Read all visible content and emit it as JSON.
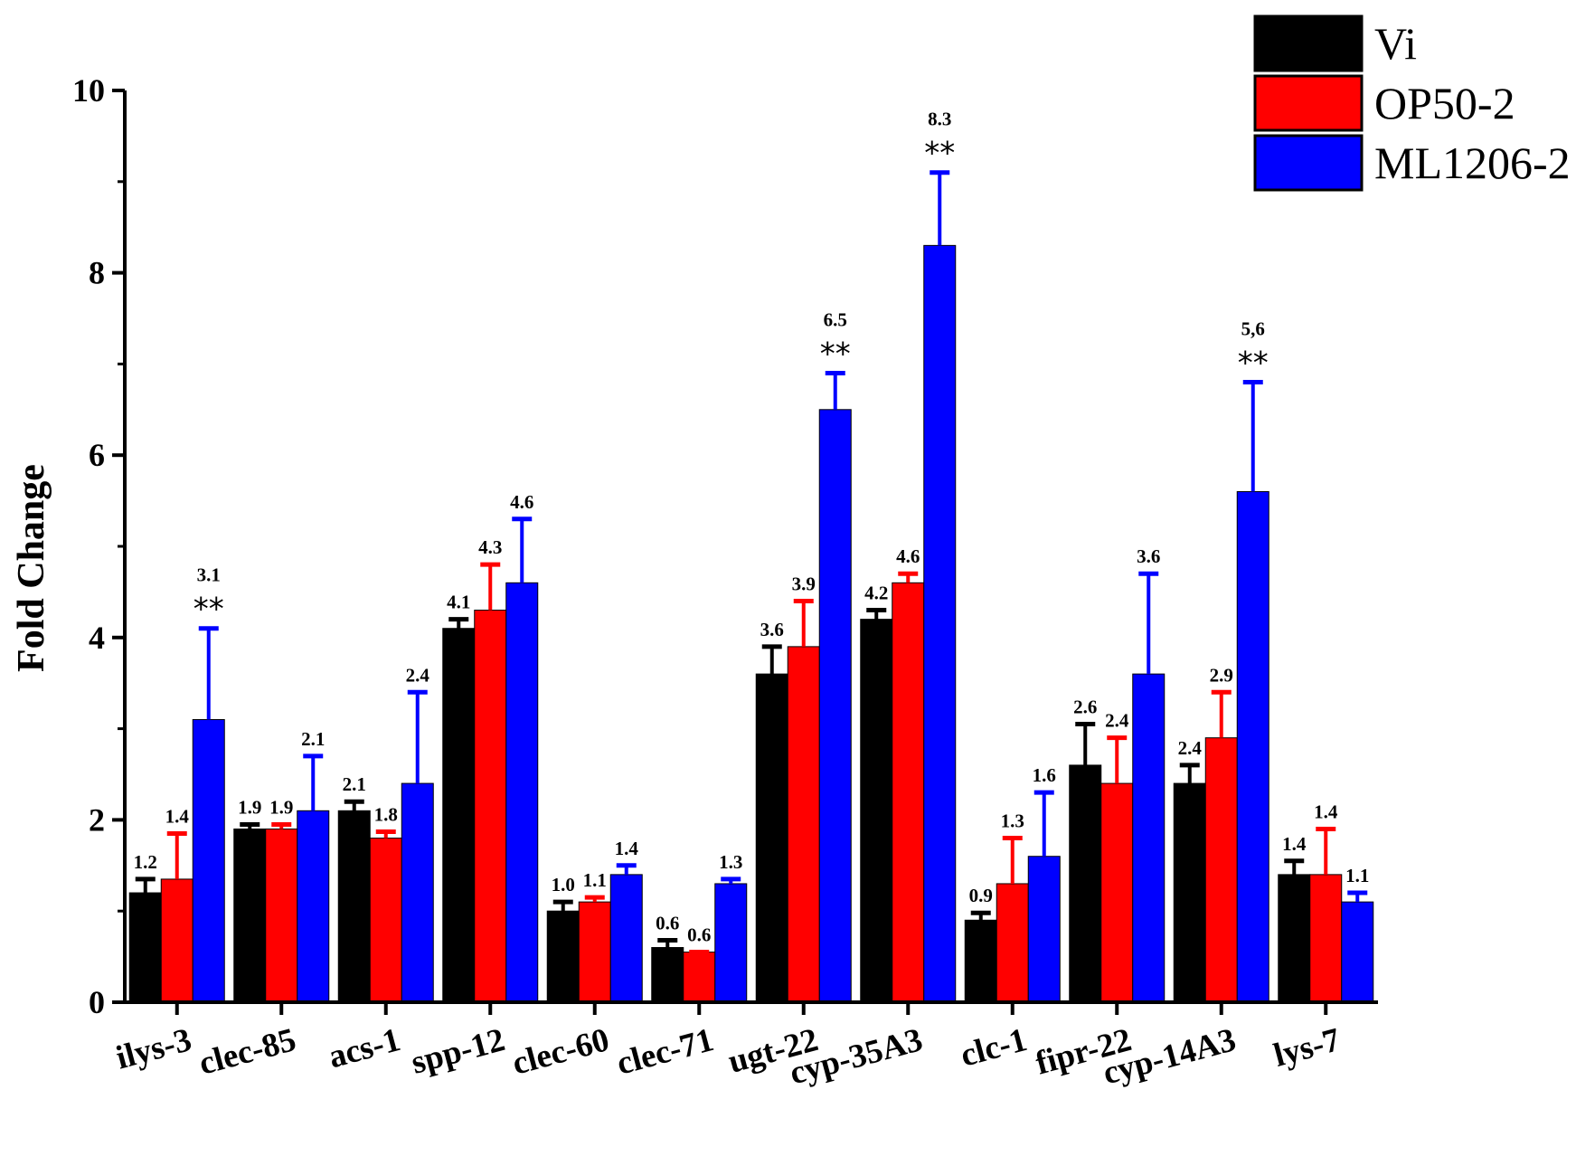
{
  "chart_data": {
    "type": "bar",
    "title": "",
    "xlabel": "",
    "ylabel": "Fold Change",
    "ylim": [
      0,
      10
    ],
    "yticks": [
      "0",
      "2",
      "4",
      "6",
      "8",
      "10"
    ],
    "grid": false,
    "legend_position": "top-right",
    "categories": [
      "ilys-3",
      "clec-85",
      "acs-1",
      "spp-12",
      "clec-60",
      "clec-71",
      "ugt-22",
      "cyp-35A3",
      "clc-1",
      "fipr-22",
      "cyp-14A3",
      "lys-7"
    ],
    "series": [
      {
        "name": "Vi",
        "color": "#000000",
        "values": [
          1.2,
          1.9,
          2.1,
          4.1,
          1.0,
          0.6,
          3.6,
          4.2,
          0.9,
          2.6,
          2.4,
          1.4
        ],
        "errors": [
          0.15,
          0.05,
          0.1,
          0.1,
          0.1,
          0.08,
          0.3,
          0.1,
          0.08,
          0.45,
          0.2,
          0.15
        ],
        "labels": [
          "1.2",
          "1.9",
          "2.1",
          "4.1",
          "1.0",
          "0.6",
          "3.6",
          "4.2",
          "0.9",
          "2.6",
          "2.4",
          "1.4"
        ]
      },
      {
        "name": "OP50-2",
        "color": "#ff0000",
        "values": [
          1.35,
          1.9,
          1.8,
          4.3,
          1.1,
          0.55,
          3.9,
          4.6,
          1.3,
          2.4,
          2.9,
          1.4
        ],
        "errors": [
          0.5,
          0.05,
          0.07,
          0.5,
          0.05,
          0.0,
          0.5,
          0.1,
          0.5,
          0.5,
          0.5,
          0.5
        ],
        "labels": [
          "1.4",
          "1.9",
          "1.8",
          "4.3",
          "1.1",
          "0.6",
          "3.9",
          "4.6",
          "1.3",
          "2.4",
          "2.9",
          "1.4"
        ]
      },
      {
        "name": "ML1206-2",
        "color": "#0000ff",
        "values": [
          3.1,
          2.1,
          2.4,
          4.6,
          1.4,
          1.3,
          6.5,
          8.3,
          1.6,
          3.6,
          5.6,
          1.1
        ],
        "errors": [
          1.0,
          0.6,
          1.0,
          0.7,
          0.1,
          0.05,
          0.4,
          0.8,
          0.7,
          1.1,
          1.2,
          0.1
        ],
        "labels": [
          "3.1",
          "2.1",
          "2.4",
          "4.6",
          "1.4",
          "1.3",
          "6.5",
          "8.3",
          "1.6",
          "3.6",
          "5,6",
          "1.1"
        ],
        "significance": [
          "**",
          "",
          "",
          "",
          "",
          "",
          "**",
          "**",
          "",
          "",
          "**",
          ""
        ]
      }
    ]
  }
}
